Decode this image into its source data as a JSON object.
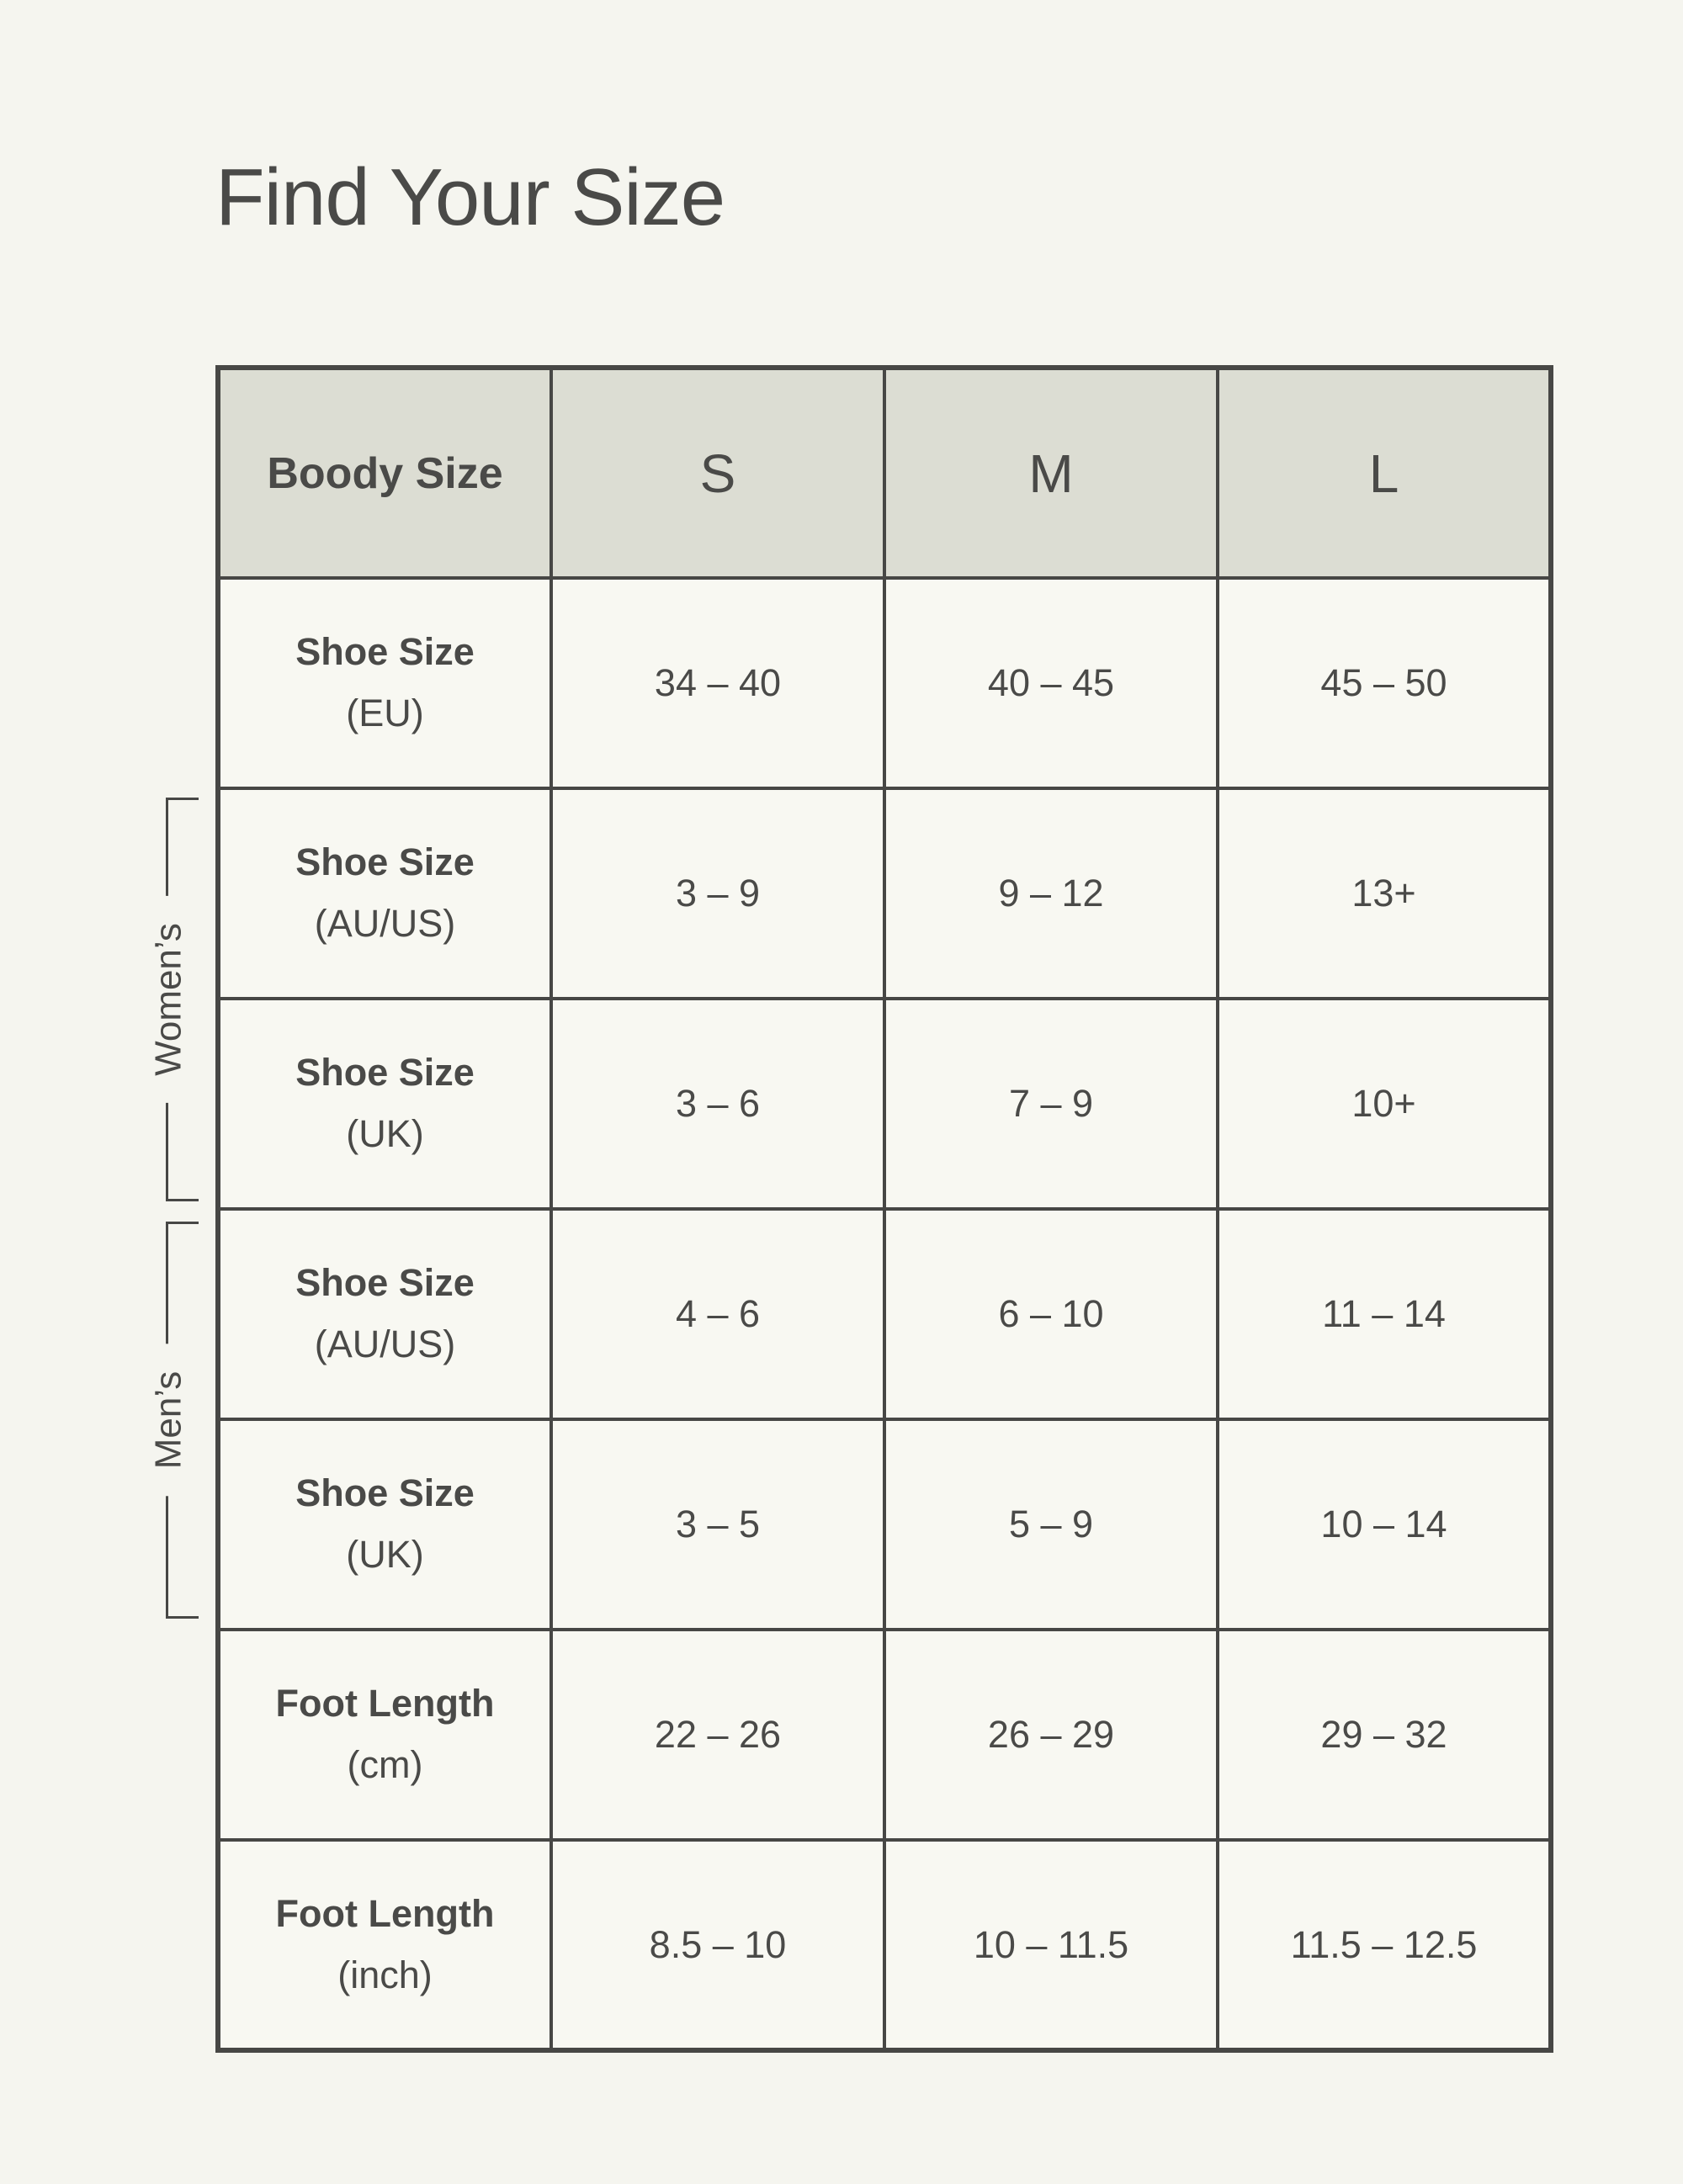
{
  "title": "Find Your Size",
  "colors": {
    "page_bg": "#f5f5ef",
    "cell_bg": "#f8f8f2",
    "header_bg": "#dcddd3",
    "border": "#474745",
    "text": "#4a4a48"
  },
  "table": {
    "header_label": "Boody Size",
    "sizes": [
      "S",
      "M",
      "L"
    ],
    "rows": [
      {
        "label": "Shoe Size",
        "unit": "(EU)",
        "values": [
          "34 – 40",
          "40 – 45",
          "45 – 50"
        ]
      },
      {
        "label": "Shoe Size",
        "unit": "(AU/US)",
        "values": [
          "3 – 9",
          "9 – 12",
          "13+"
        ]
      },
      {
        "label": "Shoe Size",
        "unit": "(UK)",
        "values": [
          "3 – 6",
          "7 – 9",
          "10+"
        ]
      },
      {
        "label": "Shoe Size",
        "unit": "(AU/US)",
        "values": [
          "4 – 6",
          "6 – 10",
          "11 – 14"
        ]
      },
      {
        "label": "Shoe Size",
        "unit": "(UK)",
        "values": [
          "3 – 5",
          "5 – 9",
          "10 – 14"
        ]
      },
      {
        "label": "Foot Length",
        "unit": "(cm)",
        "values": [
          "22 – 26",
          "26 – 29",
          "29 – 32"
        ]
      },
      {
        "label": "Foot Length",
        "unit": "(inch)",
        "values": [
          "8.5 – 10",
          "10 – 11.5",
          "11.5 – 12.5"
        ]
      }
    ]
  },
  "groups": {
    "womens": "Women’s",
    "mens": "Men’s"
  },
  "chart_data": {
    "type": "table",
    "title": "Find Your Size",
    "columns": [
      "Boody Size",
      "S",
      "M",
      "L"
    ],
    "rows": [
      [
        "Shoe Size (EU)",
        "34 – 40",
        "40 – 45",
        "45 – 50"
      ],
      [
        "Shoe Size (AU/US) — Women’s",
        "3 – 9",
        "9 – 12",
        "13+"
      ],
      [
        "Shoe Size (UK) — Women’s",
        "3 – 6",
        "7 – 9",
        "10+"
      ],
      [
        "Shoe Size (AU/US) — Men’s",
        "4 – 6",
        "6 – 10",
        "11 – 14"
      ],
      [
        "Shoe Size (UK) — Men’s",
        "3 – 5",
        "5 – 9",
        "10 – 14"
      ],
      [
        "Foot Length (cm)",
        "22 – 26",
        "26 – 29",
        "29 – 32"
      ],
      [
        "Foot Length (inch)",
        "8.5 – 10",
        "10 – 11.5",
        "11.5 – 12.5"
      ]
    ],
    "row_groups": [
      {
        "label": "Women’s",
        "row_indices": [
          1,
          2
        ]
      },
      {
        "label": "Men’s",
        "row_indices": [
          3,
          4
        ]
      }
    ],
    "layout": {
      "header_fill": "#dcddd3",
      "grid": true,
      "columns_equal_width": true
    }
  }
}
